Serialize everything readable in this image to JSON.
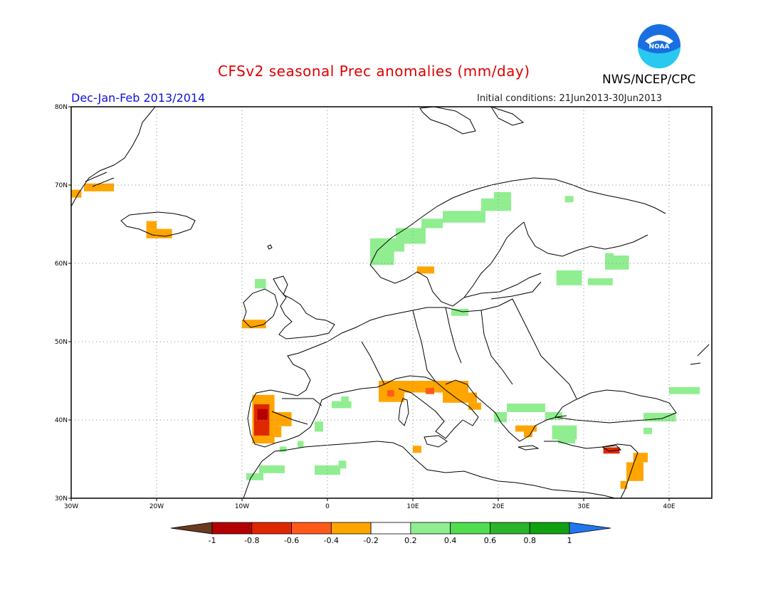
{
  "header": {
    "title": "CFSv2 seasonal Prec anomalies (mm/day)",
    "agency": "NWS/NCEP/CPC",
    "period": "Dec-Jan-Feb 2013/2014",
    "initial_conditions": "Initial conditions: 21Jun2013-30Jun2013",
    "logo_text": "NOAA"
  },
  "colors": {
    "title": "#e00000",
    "period": "#1010e0",
    "agency": "#000000"
  },
  "map": {
    "lon_range": [
      -30,
      45
    ],
    "lat_range": [
      30,
      80
    ],
    "lon_ticks": [
      {
        "value": -30,
        "label": "30W"
      },
      {
        "value": -20,
        "label": "20W"
      },
      {
        "value": -10,
        "label": "10W"
      },
      {
        "value": 0,
        "label": "0"
      },
      {
        "value": 10,
        "label": "10E"
      },
      {
        "value": 20,
        "label": "20E"
      },
      {
        "value": 30,
        "label": "30E"
      },
      {
        "value": 40,
        "label": "40E"
      }
    ],
    "lat_ticks": [
      {
        "value": 30,
        "label": "30N"
      },
      {
        "value": 40,
        "label": "40N"
      },
      {
        "value": 50,
        "label": "50N"
      },
      {
        "value": 60,
        "label": "60N"
      },
      {
        "value": 70,
        "label": "70N"
      },
      {
        "value": 80,
        "label": "80N"
      }
    ],
    "grid": "dotted"
  },
  "legend": {
    "labels": [
      "-1",
      "-0.8",
      "-0.6",
      "-0.4",
      "-0.2",
      "0.2",
      "0.4",
      "0.6",
      "0.8",
      "1"
    ],
    "colors": [
      "#6b3a20",
      "#b40000",
      "#e02800",
      "#ff5a1a",
      "#ffa500",
      "#ffffff",
      "#90ee90",
      "#50dd50",
      "#2ab42a",
      "#10a010",
      "#2277ee"
    ]
  },
  "anomalies": [
    {
      "lon": [
        -30,
        -28.8
      ],
      "lat": [
        68.4,
        69.4
      ],
      "color": "#ffa500"
    },
    {
      "lon": [
        -28.5,
        -25
      ],
      "lat": [
        69.2,
        70.2
      ],
      "color": "#ffa500"
    },
    {
      "lon": [
        -21.2,
        -18.2
      ],
      "lat": [
        63.2,
        64.4
      ],
      "color": "#ffa500"
    },
    {
      "lon": [
        -21.2,
        -20
      ],
      "lat": [
        64.4,
        65.4
      ],
      "color": "#ffa500"
    },
    {
      "lon": [
        -10,
        -7.2
      ],
      "lat": [
        51.7,
        52.8
      ],
      "color": "#ffa500"
    },
    {
      "lon": [
        -8.5,
        -7.2
      ],
      "lat": [
        56.8,
        58
      ],
      "color": "#90ee90"
    },
    {
      "lon": [
        -8.8,
        -6.2
      ],
      "lat": [
        37,
        43.2
      ],
      "color": "#ffa500"
    },
    {
      "lon": [
        -6.2,
        -4.2
      ],
      "lat": [
        39.2,
        41
      ],
      "color": "#ffa500"
    },
    {
      "lon": [
        -6.2,
        -5.4
      ],
      "lat": [
        37.8,
        39.2
      ],
      "color": "#ffa500"
    },
    {
      "lon": [
        -8.6,
        -6.8
      ],
      "lat": [
        38,
        42
      ],
      "color": "#e02800"
    },
    {
      "lon": [
        -8.2,
        -7
      ],
      "lat": [
        40,
        41.4
      ],
      "color": "#b40000"
    },
    {
      "lon": [
        -5.6,
        -4.8
      ],
      "lat": [
        35.9,
        36.6
      ],
      "color": "#90ee90"
    },
    {
      "lon": [
        -9.5,
        -7.5
      ],
      "lat": [
        32.3,
        33.2
      ],
      "color": "#90ee90"
    },
    {
      "lon": [
        -8,
        -5
      ],
      "lat": [
        33.2,
        34.2
      ],
      "color": "#90ee90"
    },
    {
      "lon": [
        -1.5,
        1.5
      ],
      "lat": [
        33,
        34.2
      ],
      "color": "#90ee90"
    },
    {
      "lon": [
        1.3,
        2.2
      ],
      "lat": [
        33.8,
        34.8
      ],
      "color": "#90ee90"
    },
    {
      "lon": [
        -1.5,
        -0.5
      ],
      "lat": [
        38.5,
        39.8
      ],
      "color": "#90ee90"
    },
    {
      "lon": [
        0.5,
        2.8
      ],
      "lat": [
        41.5,
        42.4
      ],
      "color": "#90ee90"
    },
    {
      "lon": [
        1.6,
        2.5
      ],
      "lat": [
        42.3,
        43
      ],
      "color": "#90ee90"
    },
    {
      "lon": [
        -3.5,
        -2.8
      ],
      "lat": [
        36.5,
        37.3
      ],
      "color": "#90ee90"
    },
    {
      "lon": [
        6,
        16.5
      ],
      "lat": [
        43.5,
        45
      ],
      "color": "#ffa500"
    },
    {
      "lon": [
        6,
        9
      ],
      "lat": [
        42.3,
        43.5
      ],
      "color": "#ffa500"
    },
    {
      "lon": [
        7,
        7.8
      ],
      "lat": [
        43,
        43.8
      ],
      "color": "#ff5a1a"
    },
    {
      "lon": [
        11.5,
        12.5
      ],
      "lat": [
        43.3,
        44.1
      ],
      "color": "#ff5a1a"
    },
    {
      "lon": [
        13.5,
        17.5
      ],
      "lat": [
        42.2,
        43.5
      ],
      "color": "#ffa500"
    },
    {
      "lon": [
        16.5,
        18
      ],
      "lat": [
        41.3,
        42.2
      ],
      "color": "#ffa500"
    },
    {
      "lon": [
        10,
        11
      ],
      "lat": [
        35.8,
        36.7
      ],
      "color": "#ffa500"
    },
    {
      "lon": [
        22,
        24.5
      ],
      "lat": [
        38.5,
        39.3
      ],
      "color": "#ffa500"
    },
    {
      "lon": [
        23,
        24
      ],
      "lat": [
        37.8,
        38.5
      ],
      "color": "#ffa500"
    },
    {
      "lon": [
        32.3,
        34.2
      ],
      "lat": [
        35.7,
        36.5
      ],
      "color": "#e02800"
    },
    {
      "lon": [
        35.8,
        37.5
      ],
      "lat": [
        34.6,
        35.8
      ],
      "color": "#ffa500"
    },
    {
      "lon": [
        35,
        37
      ],
      "lat": [
        32.2,
        34.6
      ],
      "color": "#ffa500"
    },
    {
      "lon": [
        34.3,
        35.1
      ],
      "lat": [
        31.2,
        32.2
      ],
      "color": "#ffa500"
    },
    {
      "lon": [
        19.5,
        21
      ],
      "lat": [
        39.7,
        41
      ],
      "color": "#90ee90"
    },
    {
      "lon": [
        21,
        25.5
      ],
      "lat": [
        41,
        42.1
      ],
      "color": "#90ee90"
    },
    {
      "lon": [
        25.5,
        27.5
      ],
      "lat": [
        40,
        41
      ],
      "color": "#90ee90"
    },
    {
      "lon": [
        26.3,
        29.2
      ],
      "lat": [
        37.5,
        39.3
      ],
      "color": "#90ee90"
    },
    {
      "lon": [
        27,
        29
      ],
      "lat": [
        37,
        37.5
      ],
      "color": "#90ee90"
    },
    {
      "lon": [
        37,
        40.8
      ],
      "lat": [
        39.8,
        40.9
      ],
      "color": "#90ee90"
    },
    {
      "lon": [
        37,
        38
      ],
      "lat": [
        38.2,
        39
      ],
      "color": "#90ee90"
    },
    {
      "lon": [
        40,
        43.6
      ],
      "lat": [
        43.3,
        44.2
      ],
      "color": "#90ee90"
    },
    {
      "lon": [
        14.5,
        16.5
      ],
      "lat": [
        53.3,
        54.2
      ],
      "color": "#90ee90"
    },
    {
      "lon": [
        10.5,
        12.5
      ],
      "lat": [
        58.7,
        59.6
      ],
      "color": "#ffa500"
    },
    {
      "lon": [
        5,
        7.8
      ],
      "lat": [
        59.8,
        62
      ],
      "color": "#90ee90"
    },
    {
      "lon": [
        5,
        9
      ],
      "lat": [
        61.5,
        63.2
      ],
      "color": "#90ee90"
    },
    {
      "lon": [
        8,
        11.5
      ],
      "lat": [
        62.5,
        64.5
      ],
      "color": "#90ee90"
    },
    {
      "lon": [
        11,
        13.5
      ],
      "lat": [
        64.5,
        65.7
      ],
      "color": "#90ee90"
    },
    {
      "lon": [
        13.5,
        18.5
      ],
      "lat": [
        65.2,
        66.7
      ],
      "color": "#90ee90"
    },
    {
      "lon": [
        18,
        21.5
      ],
      "lat": [
        66.7,
        68.3
      ],
      "color": "#90ee90"
    },
    {
      "lon": [
        19.5,
        21.5
      ],
      "lat": [
        68.3,
        69.1
      ],
      "color": "#90ee90"
    },
    {
      "lon": [
        27.8,
        28.8
      ],
      "lat": [
        67.8,
        68.6
      ],
      "color": "#90ee90"
    },
    {
      "lon": [
        26.8,
        29.8
      ],
      "lat": [
        57.2,
        59.1
      ],
      "color": "#90ee90"
    },
    {
      "lon": [
        30.5,
        33.4
      ],
      "lat": [
        57.2,
        58.1
      ],
      "color": "#90ee90"
    },
    {
      "lon": [
        32.5,
        35.3
      ],
      "lat": [
        59.2,
        61
      ],
      "color": "#90ee90"
    },
    {
      "lon": [
        32.5,
        33.5
      ],
      "lat": [
        60.6,
        61.3
      ],
      "color": "#90ee90"
    }
  ]
}
